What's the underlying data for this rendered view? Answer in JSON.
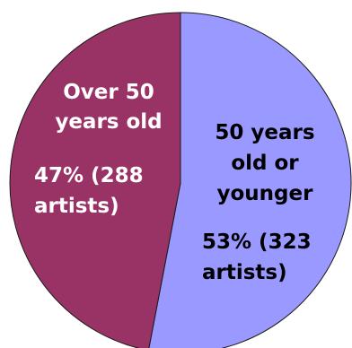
{
  "chart_data": {
    "type": "pie",
    "title": "",
    "legend": "none",
    "slices": [
      {
        "label_lines": [
          "50 years",
          "old or",
          "younger"
        ],
        "value_lines": [
          "53% (323",
          "artists)"
        ],
        "percent": 53,
        "count": 323,
        "color": "#9999ff"
      },
      {
        "label_lines": [
          "Over 50",
          "years old"
        ],
        "value_lines": [
          "47% (288",
          "artists)"
        ],
        "percent": 47,
        "count": 288,
        "color": "#993366"
      }
    ]
  }
}
